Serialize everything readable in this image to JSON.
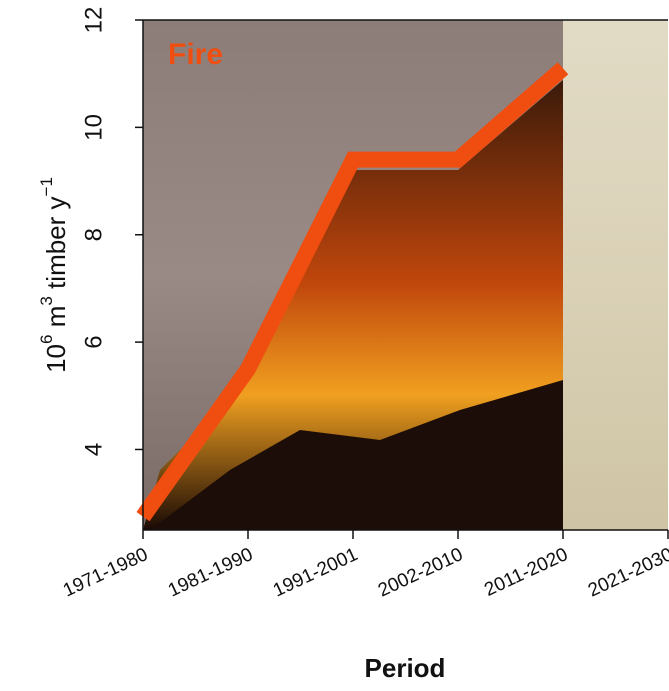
{
  "chart_data": {
    "type": "line",
    "title": "Fire",
    "ylabel": [
      {
        "text": "10"
      },
      {
        "text": "6",
        "sup": true
      },
      {
        "text": " m"
      },
      {
        "text": "3",
        "sup": true
      },
      {
        "text": " timber y"
      },
      {
        "text": "−1",
        "sup": true
      }
    ],
    "xlabel": "Period",
    "categories": [
      "1971-1980",
      "1981-1990",
      "1991-2001",
      "2002-2010",
      "2011-2020",
      "2021-2030"
    ],
    "series": [
      {
        "name": "Fire",
        "color": "#f04e10",
        "values": [
          2.75,
          5.5,
          9.4,
          9.4,
          11.1,
          null
        ]
      }
    ],
    "ylim": [
      2.5,
      12
    ],
    "yticks": [
      4,
      6,
      8,
      10,
      12
    ]
  }
}
